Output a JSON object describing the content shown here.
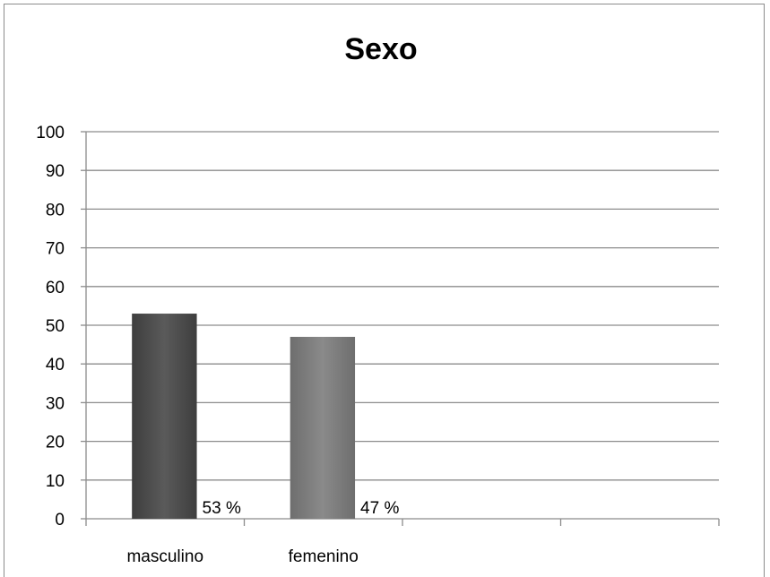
{
  "chart_data": {
    "type": "bar",
    "title": "Sexo",
    "categories": [
      "masculino",
      "femenino"
    ],
    "values": [
      53,
      47
    ],
    "data_labels": [
      "53 %",
      "47  %"
    ],
    "bar_colors": [
      "#4f4f4f",
      "#808080"
    ],
    "ylim": [
      0,
      100
    ],
    "yticks": [
      "0",
      "10",
      "20",
      "30",
      "40",
      "50",
      "60",
      "70",
      "80",
      "90",
      "100"
    ],
    "grid": true,
    "legend": "none"
  }
}
